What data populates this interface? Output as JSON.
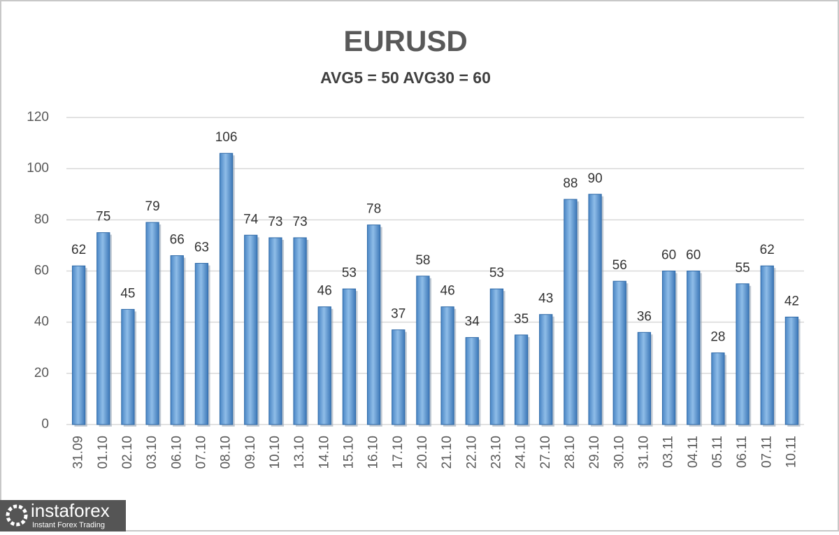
{
  "chart_data": {
    "type": "bar",
    "title": "EURUSD",
    "subtitle": "AVG5 = 50 AVG30 = 60",
    "categories": [
      "31.09",
      "01.10",
      "02.10",
      "03.10",
      "06.10",
      "07.10",
      "08.10",
      "09.10",
      "10.10",
      "13.10",
      "14.10",
      "15.10",
      "16.10",
      "17.10",
      "20.10",
      "21.10",
      "22.10",
      "23.10",
      "24.10",
      "27.10",
      "28.10",
      "29.10",
      "30.10",
      "31.10",
      "03.11",
      "04.11",
      "05.11",
      "06.11",
      "07.11",
      "10.11"
    ],
    "values": [
      62,
      75,
      45,
      79,
      66,
      63,
      106,
      74,
      73,
      73,
      46,
      53,
      78,
      37,
      58,
      46,
      34,
      53,
      35,
      43,
      88,
      90,
      56,
      36,
      60,
      60,
      28,
      55,
      62,
      42
    ],
    "color": "#5b9bd5",
    "ylim": [
      0,
      120
    ],
    "yticks": [
      0,
      20,
      40,
      60,
      80,
      100,
      120
    ],
    "grid": true
  },
  "watermark": {
    "brand": "instaforex",
    "tagline": "Instant Forex Trading"
  }
}
